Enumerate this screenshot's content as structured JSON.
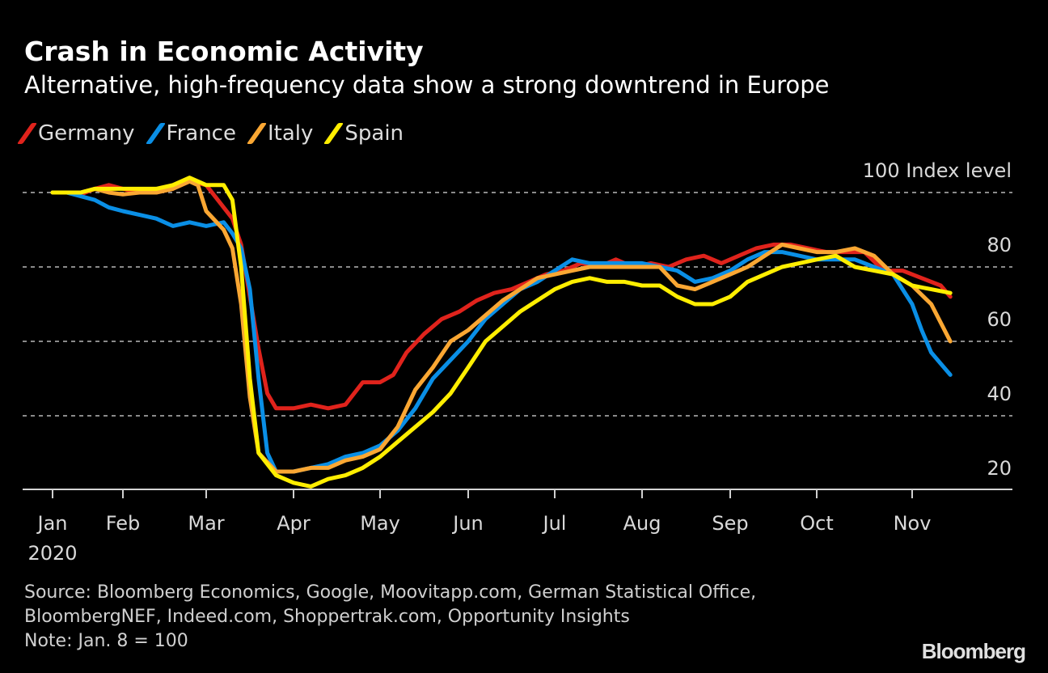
{
  "title": "Crash in Economic Activity",
  "subtitle": "Alternative, high-frequency data show a strong downtrend in Europe",
  "source_lines": [
    "Source: Bloomberg Economics, Google, Moovitapp.com, German Statistical Office,",
    "BloombergNEF, Indeed.com, Shoppertrak.com, Opportunity Insights",
    "Note: Jan. 8 = 100"
  ],
  "brand": "Bloomberg",
  "chart_data": {
    "type": "line",
    "title": "Crash in Economic Activity",
    "subtitle": "Alternative, high-frequency data show a strong downtrend in Europe",
    "xlabel": "",
    "ylabel": "Index level",
    "y_unit_label": "Index level",
    "ylim": [
      20,
      100
    ],
    "yticks": [
      20,
      40,
      60,
      80,
      100
    ],
    "ytick_labels": [
      "20",
      "40",
      "60",
      "80",
      "100"
    ],
    "grid": true,
    "legend_position": "top-left",
    "x_unit": "months since Jan 1, 2020",
    "xticks": [
      0,
      1,
      2,
      3,
      4,
      5,
      6,
      7,
      8,
      9,
      10
    ],
    "xtick_labels": [
      "Jan",
      "Feb",
      "Mar",
      "Apr",
      "May",
      "Jun",
      "Jul",
      "Aug",
      "Sep",
      "Oct",
      "Nov"
    ],
    "xtick_sublabel": "2020",
    "series": [
      {
        "name": "Germany",
        "color": "#e0231c",
        "points": [
          [
            0.0,
            100
          ],
          [
            0.2,
            100
          ],
          [
            0.4,
            99.5
          ],
          [
            0.6,
            101
          ],
          [
            0.8,
            102
          ],
          [
            1.0,
            101
          ],
          [
            1.2,
            100
          ],
          [
            1.4,
            100
          ],
          [
            1.6,
            101
          ],
          [
            1.8,
            103
          ],
          [
            2.0,
            102
          ],
          [
            2.2,
            96
          ],
          [
            2.3,
            93
          ],
          [
            2.4,
            86
          ],
          [
            2.5,
            72
          ],
          [
            2.6,
            58
          ],
          [
            2.7,
            46
          ],
          [
            2.8,
            42
          ],
          [
            3.0,
            42
          ],
          [
            3.2,
            43
          ],
          [
            3.4,
            42
          ],
          [
            3.6,
            43
          ],
          [
            3.8,
            49
          ],
          [
            4.0,
            49
          ],
          [
            4.15,
            51
          ],
          [
            4.3,
            57
          ],
          [
            4.5,
            62
          ],
          [
            4.7,
            66
          ],
          [
            4.9,
            68
          ],
          [
            5.1,
            71
          ],
          [
            5.3,
            73
          ],
          [
            5.5,
            74
          ],
          [
            5.7,
            76
          ],
          [
            5.9,
            78
          ],
          [
            6.1,
            79
          ],
          [
            6.3,
            81
          ],
          [
            6.5,
            80
          ],
          [
            6.7,
            82
          ],
          [
            6.9,
            80
          ],
          [
            7.1,
            81
          ],
          [
            7.3,
            80
          ],
          [
            7.5,
            82
          ],
          [
            7.7,
            83
          ],
          [
            7.9,
            81
          ],
          [
            8.1,
            83
          ],
          [
            8.3,
            85
          ],
          [
            8.5,
            86
          ],
          [
            8.7,
            86
          ],
          [
            8.9,
            85
          ],
          [
            9.1,
            84
          ],
          [
            9.3,
            84
          ],
          [
            9.5,
            84
          ],
          [
            9.7,
            79
          ],
          [
            9.9,
            79
          ],
          [
            10.1,
            77
          ],
          [
            10.3,
            75
          ],
          [
            10.4,
            72
          ]
        ]
      },
      {
        "name": "France",
        "color": "#0a8fe6",
        "points": [
          [
            0.0,
            100
          ],
          [
            0.2,
            100
          ],
          [
            0.4,
            99
          ],
          [
            0.6,
            98
          ],
          [
            0.8,
            96
          ],
          [
            1.0,
            95
          ],
          [
            1.2,
            94
          ],
          [
            1.4,
            93
          ],
          [
            1.6,
            91
          ],
          [
            1.8,
            92
          ],
          [
            2.0,
            91
          ],
          [
            2.2,
            92
          ],
          [
            2.3,
            89
          ],
          [
            2.4,
            85
          ],
          [
            2.5,
            74
          ],
          [
            2.6,
            50
          ],
          [
            2.7,
            30
          ],
          [
            2.8,
            25
          ],
          [
            3.0,
            25
          ],
          [
            3.2,
            26
          ],
          [
            3.4,
            27
          ],
          [
            3.6,
            29
          ],
          [
            3.8,
            30
          ],
          [
            4.0,
            32
          ],
          [
            4.2,
            36
          ],
          [
            4.4,
            42
          ],
          [
            4.6,
            50
          ],
          [
            4.8,
            55
          ],
          [
            5.0,
            60
          ],
          [
            5.2,
            66
          ],
          [
            5.4,
            70
          ],
          [
            5.6,
            74
          ],
          [
            5.8,
            76
          ],
          [
            6.0,
            79
          ],
          [
            6.2,
            82
          ],
          [
            6.4,
            81
          ],
          [
            6.6,
            81
          ],
          [
            6.8,
            81
          ],
          [
            7.0,
            81
          ],
          [
            7.2,
            80
          ],
          [
            7.4,
            79
          ],
          [
            7.6,
            76
          ],
          [
            7.8,
            77
          ],
          [
            8.0,
            79
          ],
          [
            8.2,
            82
          ],
          [
            8.4,
            84
          ],
          [
            8.6,
            84
          ],
          [
            8.8,
            83
          ],
          [
            9.0,
            82
          ],
          [
            9.2,
            82
          ],
          [
            9.4,
            82
          ],
          [
            9.6,
            80
          ],
          [
            9.8,
            78
          ],
          [
            10.0,
            70
          ],
          [
            10.1,
            63
          ],
          [
            10.2,
            57
          ],
          [
            10.3,
            54
          ],
          [
            10.4,
            51
          ]
        ]
      },
      {
        "name": "Italy",
        "color": "#faa733",
        "points": [
          [
            0.0,
            100
          ],
          [
            0.2,
            100
          ],
          [
            0.4,
            100
          ],
          [
            0.6,
            101
          ],
          [
            0.8,
            100
          ],
          [
            1.0,
            99.5
          ],
          [
            1.2,
            100
          ],
          [
            1.4,
            100
          ],
          [
            1.6,
            101
          ],
          [
            1.8,
            103
          ],
          [
            1.9,
            102
          ],
          [
            2.0,
            95
          ],
          [
            2.2,
            90
          ],
          [
            2.3,
            85
          ],
          [
            2.4,
            70
          ],
          [
            2.5,
            45
          ],
          [
            2.6,
            30
          ],
          [
            2.8,
            25
          ],
          [
            3.0,
            25
          ],
          [
            3.2,
            26
          ],
          [
            3.4,
            26
          ],
          [
            3.6,
            28
          ],
          [
            3.8,
            29
          ],
          [
            4.0,
            31
          ],
          [
            4.2,
            37
          ],
          [
            4.4,
            47
          ],
          [
            4.6,
            53
          ],
          [
            4.8,
            60
          ],
          [
            5.0,
            63
          ],
          [
            5.2,
            67
          ],
          [
            5.4,
            71
          ],
          [
            5.6,
            74
          ],
          [
            5.8,
            77
          ],
          [
            6.0,
            78
          ],
          [
            6.2,
            79
          ],
          [
            6.4,
            80
          ],
          [
            6.6,
            80
          ],
          [
            6.8,
            80
          ],
          [
            7.0,
            80
          ],
          [
            7.2,
            80
          ],
          [
            7.4,
            75
          ],
          [
            7.6,
            74
          ],
          [
            7.8,
            76
          ],
          [
            8.0,
            78
          ],
          [
            8.2,
            80
          ],
          [
            8.4,
            83
          ],
          [
            8.6,
            86
          ],
          [
            8.8,
            85
          ],
          [
            9.0,
            84
          ],
          [
            9.2,
            84
          ],
          [
            9.4,
            85
          ],
          [
            9.6,
            83
          ],
          [
            9.8,
            78
          ],
          [
            10.0,
            75
          ],
          [
            10.2,
            70
          ],
          [
            10.3,
            65
          ],
          [
            10.4,
            60
          ]
        ]
      },
      {
        "name": "Spain",
        "color": "#ffee00",
        "points": [
          [
            0.0,
            100
          ],
          [
            0.2,
            100
          ],
          [
            0.4,
            100
          ],
          [
            0.6,
            101
          ],
          [
            0.8,
            101
          ],
          [
            1.0,
            101
          ],
          [
            1.2,
            101
          ],
          [
            1.4,
            101
          ],
          [
            1.6,
            102
          ],
          [
            1.8,
            104
          ],
          [
            2.0,
            102
          ],
          [
            2.2,
            102
          ],
          [
            2.3,
            98
          ],
          [
            2.4,
            80
          ],
          [
            2.5,
            50
          ],
          [
            2.6,
            30
          ],
          [
            2.8,
            24
          ],
          [
            3.0,
            22
          ],
          [
            3.2,
            21
          ],
          [
            3.4,
            23
          ],
          [
            3.6,
            24
          ],
          [
            3.8,
            26
          ],
          [
            4.0,
            29
          ],
          [
            4.2,
            33
          ],
          [
            4.4,
            37
          ],
          [
            4.6,
            41
          ],
          [
            4.8,
            46
          ],
          [
            5.0,
            53
          ],
          [
            5.2,
            60
          ],
          [
            5.4,
            64
          ],
          [
            5.6,
            68
          ],
          [
            5.8,
            71
          ],
          [
            6.0,
            74
          ],
          [
            6.2,
            76
          ],
          [
            6.4,
            77
          ],
          [
            6.6,
            76
          ],
          [
            6.8,
            76
          ],
          [
            7.0,
            75
          ],
          [
            7.2,
            75
          ],
          [
            7.4,
            72
          ],
          [
            7.6,
            70
          ],
          [
            7.8,
            70
          ],
          [
            8.0,
            72
          ],
          [
            8.2,
            76
          ],
          [
            8.4,
            78
          ],
          [
            8.6,
            80
          ],
          [
            8.8,
            81
          ],
          [
            9.0,
            82
          ],
          [
            9.2,
            83
          ],
          [
            9.4,
            80
          ],
          [
            9.6,
            79
          ],
          [
            9.8,
            78
          ],
          [
            10.0,
            75
          ],
          [
            10.2,
            74
          ],
          [
            10.4,
            73
          ]
        ]
      }
    ]
  }
}
